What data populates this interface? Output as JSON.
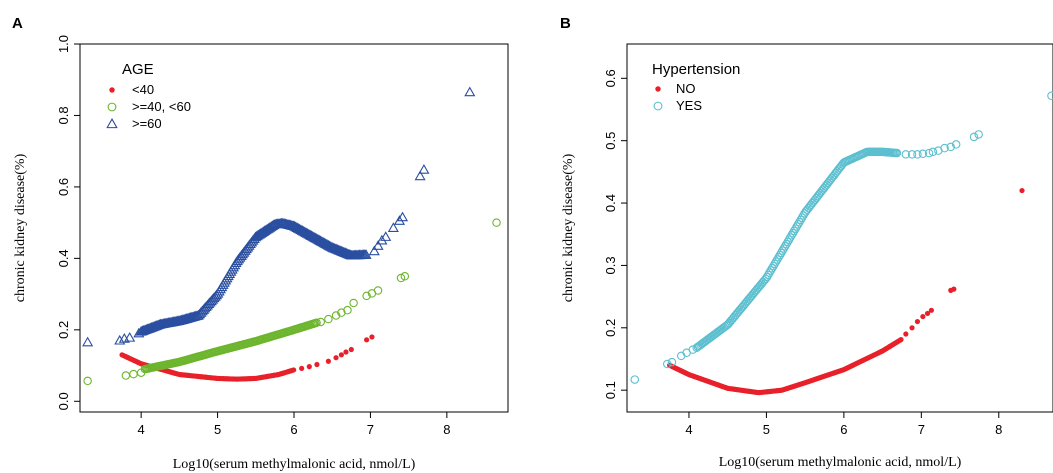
{
  "chart_data": [
    {
      "type": "scatter",
      "panel": "A",
      "xlabel": "Log10(serum methylmalonic acid, nmol/L)",
      "ylabel": "chronic kidney disease(%)",
      "xlim": [
        3.2,
        8.8
      ],
      "ylim": [
        -0.03,
        1.0
      ],
      "xticks": [
        "4",
        "5",
        "6",
        "7",
        "8"
      ],
      "yticks": [
        "0.0",
        "0.2",
        "0.4",
        "0.6",
        "0.8",
        "1.0"
      ],
      "grid": false,
      "legend_title": "AGE",
      "legend_position": "top-left",
      "series": [
        {
          "name": "<40",
          "marker": "dot",
          "color": "#e8202a",
          "curve": {
            "x": [
              3.75,
              4.0,
              4.5,
              5.0,
              5.25,
              5.5,
              5.8,
              6.0
            ],
            "y": [
              0.13,
              0.105,
              0.075,
              0.064,
              0.062,
              0.064,
              0.075,
              0.088
            ]
          },
          "points": {
            "x": [
              6.1,
              6.2,
              6.3,
              6.45,
              6.55,
              6.62,
              6.68,
              6.75,
              6.95,
              7.02
            ],
            "y": [
              0.092,
              0.097,
              0.103,
              0.112,
              0.122,
              0.13,
              0.138,
              0.145,
              0.172,
              0.18
            ]
          }
        },
        {
          "name": ">=40, <60",
          "marker": "open-circle",
          "color": "#6cb52d",
          "curve": {
            "x": [
              4.05,
              4.5,
              5.0,
              5.5,
              6.0,
              6.3
            ],
            "y": [
              0.09,
              0.11,
              0.14,
              0.168,
              0.2,
              0.22
            ]
          },
          "points": {
            "x": [
              3.3,
              3.8,
              3.9,
              4.0,
              6.35,
              6.45,
              6.55,
              6.62,
              6.7,
              6.78,
              6.95,
              7.02,
              7.1,
              7.4,
              7.45,
              8.65
            ],
            "y": [
              0.057,
              0.072,
              0.076,
              0.08,
              0.222,
              0.23,
              0.24,
              0.248,
              0.255,
              0.275,
              0.295,
              0.302,
              0.31,
              0.345,
              0.35,
              0.5
            ]
          }
        },
        {
          "name": ">=60",
          "marker": "open-triangle",
          "color": "#2a4ea0",
          "curve": {
            "x": [
              4.0,
              4.25,
              4.5,
              4.75,
              5.0,
              5.25,
              5.5,
              5.75,
              5.85,
              6.0,
              6.25,
              6.5,
              6.75,
              6.95
            ],
            "y": [
              0.195,
              0.215,
              0.225,
              0.24,
              0.3,
              0.39,
              0.46,
              0.495,
              0.498,
              0.49,
              0.46,
              0.43,
              0.408,
              0.41
            ]
          },
          "points": {
            "x": [
              3.3,
              3.72,
              3.78,
              3.85,
              3.97,
              7.05,
              7.1,
              7.15,
              7.2,
              7.3,
              7.38,
              7.42,
              7.65,
              7.7,
              8.3
            ],
            "y": [
              0.165,
              0.17,
              0.175,
              0.178,
              0.19,
              0.42,
              0.435,
              0.45,
              0.46,
              0.485,
              0.505,
              0.515,
              0.63,
              0.648,
              0.865
            ]
          }
        }
      ]
    },
    {
      "type": "scatter",
      "panel": "B",
      "xlabel": "Log10(serum methylmalonic acid, nmol/L)",
      "ylabel": "chronic kidney disease(%)",
      "xlim": [
        3.2,
        8.7
      ],
      "ylim": [
        0.065,
        0.655
      ],
      "xticks": [
        "4",
        "5",
        "6",
        "7",
        "8"
      ],
      "yticks": [
        "0.1",
        "0.2",
        "0.3",
        "0.4",
        "0.5",
        "0.6"
      ],
      "grid": false,
      "legend_title": "Hypertension",
      "legend_position": "top-left",
      "series": [
        {
          "name": "NO",
          "marker": "dot",
          "color": "#e8202a",
          "curve": {
            "x": [
              3.75,
              4.0,
              4.5,
              4.9,
              5.2,
              5.5,
              6.0,
              6.5,
              6.75
            ],
            "y": [
              0.14,
              0.125,
              0.103,
              0.096,
              0.1,
              0.112,
              0.133,
              0.163,
              0.182
            ]
          },
          "points": {
            "x": [
              6.8,
              6.88,
              6.95,
              7.02,
              7.08,
              7.13,
              7.38,
              7.42,
              8.3
            ],
            "y": [
              0.19,
              0.2,
              0.21,
              0.218,
              0.223,
              0.228,
              0.26,
              0.262,
              0.42
            ]
          }
        },
        {
          "name": "YES",
          "marker": "open-circle",
          "color": "#5bbfcf",
          "curve": {
            "x": [
              4.1,
              4.5,
              5.0,
              5.5,
              6.0,
              6.3,
              6.5,
              6.7
            ],
            "y": [
              0.168,
              0.205,
              0.28,
              0.385,
              0.465,
              0.482,
              0.482,
              0.48
            ]
          },
          "points": {
            "x": [
              3.3,
              3.72,
              3.78,
              3.9,
              3.97,
              4.05,
              6.8,
              6.88,
              6.95,
              7.02,
              7.1,
              7.15,
              7.22,
              7.3,
              7.38,
              7.45,
              7.68,
              7.74,
              8.68
            ],
            "y": [
              0.117,
              0.142,
              0.145,
              0.155,
              0.16,
              0.165,
              0.478,
              0.478,
              0.478,
              0.479,
              0.48,
              0.482,
              0.484,
              0.488,
              0.49,
              0.494,
              0.506,
              0.51,
              0.572
            ]
          }
        }
      ]
    }
  ]
}
